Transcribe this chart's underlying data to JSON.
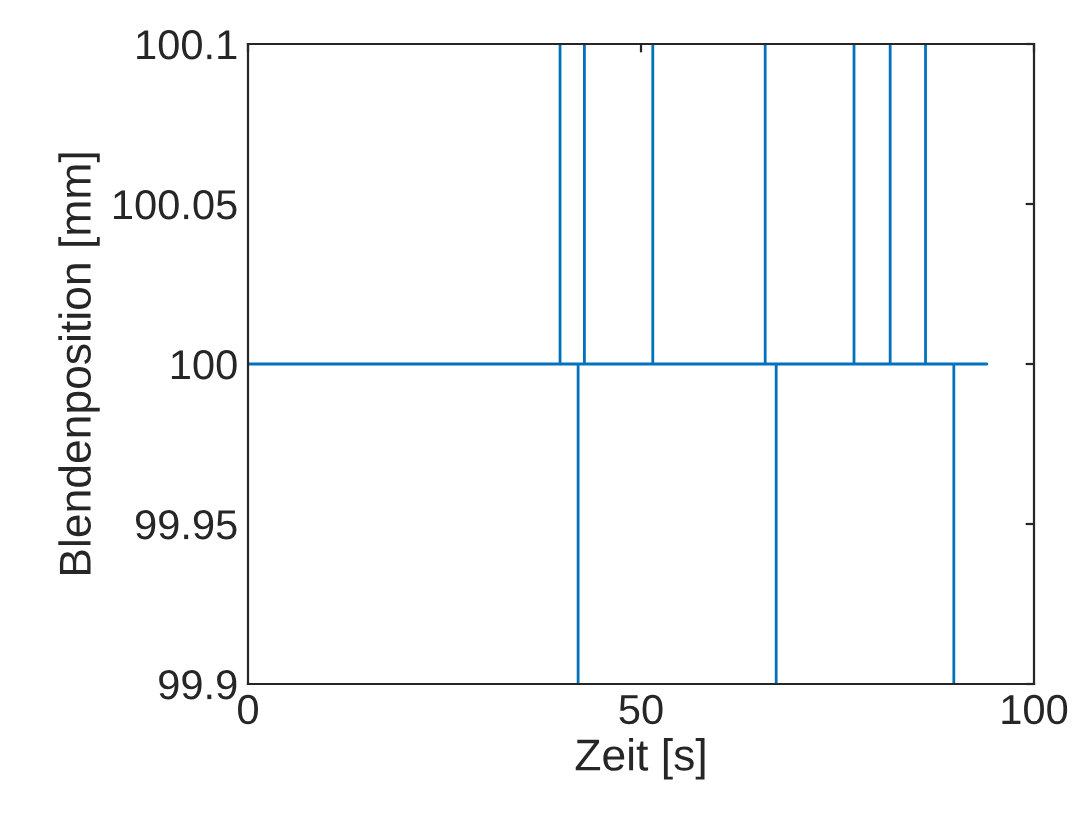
{
  "chart_data": {
    "type": "line",
    "xlabel": "Zeit [s]",
    "ylabel": "Blendenposition [mm]",
    "x": [
      0,
      39.7,
      39.7,
      39.7,
      42.0,
      42.0,
      42.0,
      42.8,
      42.8,
      42.8,
      51.5,
      51.5,
      51.5,
      65.8,
      65.8,
      65.8,
      67.2,
      67.2,
      67.2,
      77.1,
      77.1,
      77.1,
      81.7,
      81.7,
      81.7,
      86.2,
      86.2,
      86.2,
      89.8,
      89.8,
      89.8,
      94.0
    ],
    "series": [
      {
        "color": "#0072bd",
        "values": [
          100,
          100,
          100.1,
          100,
          100,
          99.9,
          100,
          100,
          100.1,
          100,
          100,
          100.1,
          100,
          100,
          100.1,
          100,
          100,
          99.9,
          100,
          100,
          100.1,
          100,
          100,
          100.1,
          100,
          100,
          100.1,
          100,
          100,
          99.9,
          100,
          100
        ]
      }
    ],
    "xlim": [
      0,
      100
    ],
    "xticks": [
      0,
      50,
      100
    ],
    "ylim": [
      99.9,
      100.1
    ],
    "yticks": [
      99.9,
      99.95,
      100,
      100.05,
      100.1
    ],
    "grid": false,
    "legend": false
  }
}
